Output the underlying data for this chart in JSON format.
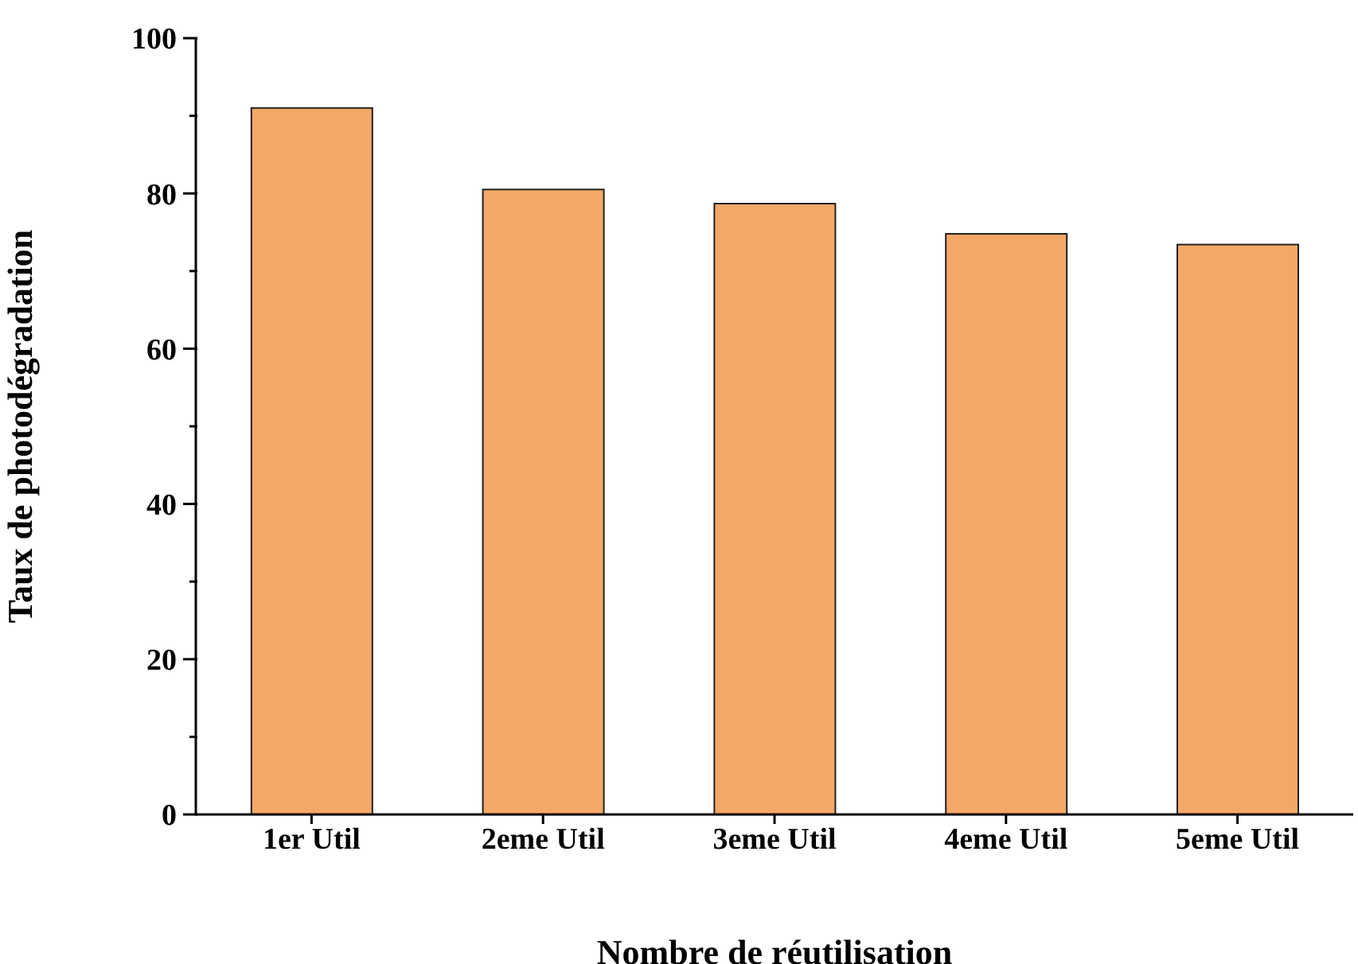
{
  "chart_data": {
    "type": "bar",
    "xlabel": "Nombre de réutilisation",
    "ylabel": "Taux de photodégradation",
    "categories": [
      "1er Util",
      "2eme Util",
      "3eme Util",
      "4eme Util",
      "5eme Util"
    ],
    "values": [
      91,
      80.5,
      78.7,
      74.8,
      73.4
    ],
    "color": "#f4a868",
    "ylim": [
      0,
      100
    ],
    "yticks": [
      0,
      {
        "value": 10,
        "label": null
      },
      20,
      {
        "value": 30,
        "label": null
      },
      40,
      {
        "value": 50,
        "label": null
      },
      60,
      {
        "value": 70,
        "label": null
      },
      80,
      {
        "value": 90,
        "label": null
      },
      100
    ],
    "grid": false,
    "legend": false
  }
}
